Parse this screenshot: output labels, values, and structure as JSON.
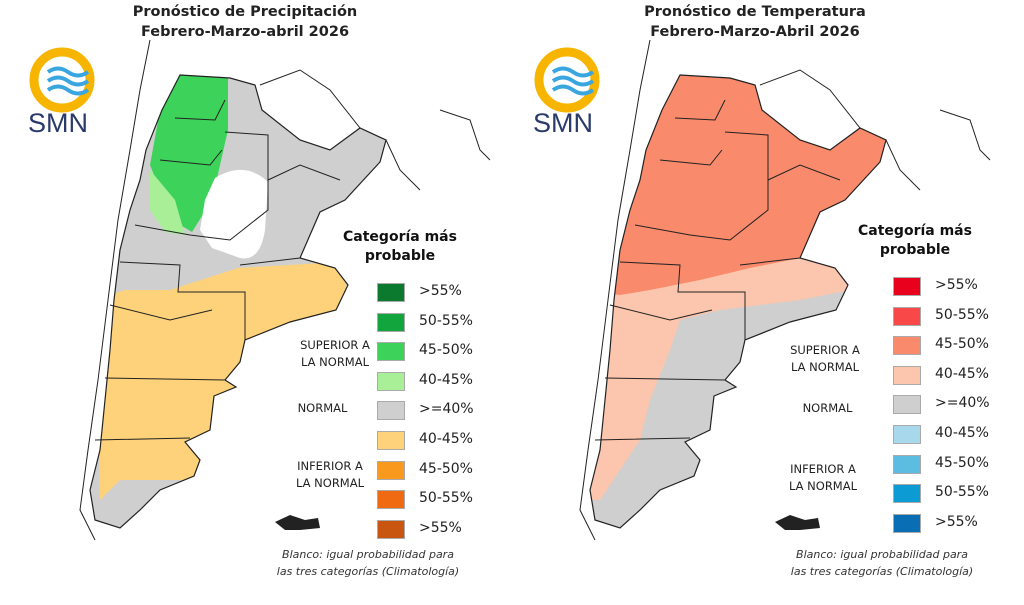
{
  "panels": [
    {
      "title_line1": "Pronóstico de Precipitación",
      "title_line2": "Febrero-Marzo-abril 2026",
      "logo_text": "SMN",
      "legend_title_line1": "Categoría más",
      "legend_title_line2": "probable",
      "legend_items": [
        {
          "label": ">55%",
          "color": "#0b7a2e"
        },
        {
          "label": "50-55%",
          "color": "#12a53e"
        },
        {
          "label": "45-50%",
          "color": "#3dd25a"
        },
        {
          "label": "40-45%",
          "color": "#a8ef98"
        },
        {
          "label": ">=40%",
          "color": "#cfcfcf"
        },
        {
          "label": "40-45%",
          "color": "#fdd27a"
        },
        {
          "label": "45-50%",
          "color": "#f99a1e"
        },
        {
          "label": "50-55%",
          "color": "#f06a12"
        },
        {
          "label": ">55%",
          "color": "#c85510"
        }
      ],
      "superior_line1": "SUPERIOR A",
      "superior_line2": "LA NORMAL",
      "normal": "NORMAL",
      "inferior_line1": "INFERIOR A",
      "inferior_line2": "LA NORMAL",
      "footnote_line1": "Blanco: igual probabilidad para",
      "footnote_line2": "las tres categorías (Climatología)"
    },
    {
      "title_line1": "Pronóstico de Temperatura",
      "title_line2": "Febrero-Marzo-Abril 2026",
      "logo_text": "SMN",
      "legend_title_line1": "Categoría más",
      "legend_title_line2": "probable",
      "legend_items": [
        {
          "label": ">55%",
          "color": "#e8001c"
        },
        {
          "label": "50-55%",
          "color": "#f84848"
        },
        {
          "label": "45-50%",
          "color": "#f98a6c"
        },
        {
          "label": "40-45%",
          "color": "#fcc5ad"
        },
        {
          "label": ">=40%",
          "color": "#cfcfcf"
        },
        {
          "label": "40-45%",
          "color": "#a8d8ec"
        },
        {
          "label": "45-50%",
          "color": "#5cbde0"
        },
        {
          "label": "50-55%",
          "color": "#0c9bd2"
        },
        {
          "label": ">55%",
          "color": "#0a6eb4"
        }
      ],
      "superior_line1": "SUPERIOR A",
      "superior_line2": "LA NORMAL",
      "normal": "NORMAL",
      "inferior_line1": "INFERIOR A",
      "inferior_line2": "LA NORMAL",
      "footnote_line1": "Blanco: igual probabilidad para",
      "footnote_line2": "las tres categorías (Climatología)"
    }
  ]
}
